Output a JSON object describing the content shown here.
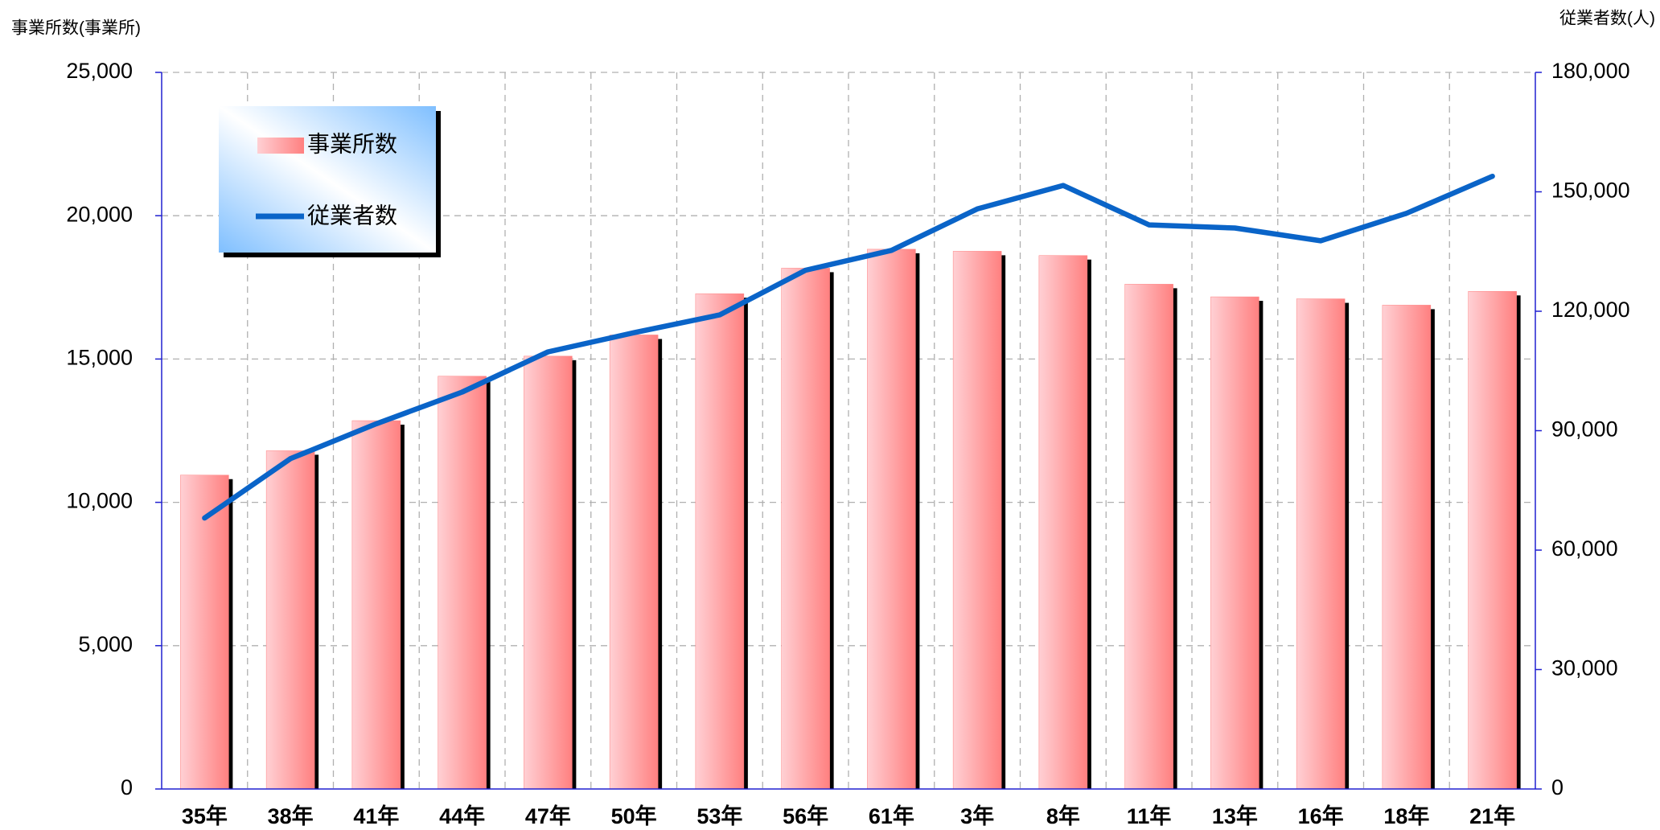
{
  "chart_data": {
    "type": "bar-line",
    "y_label": "事業所数(事業所)",
    "y2_label": "従業者数(人)",
    "categories": [
      "35年",
      "38年",
      "41年",
      "44年",
      "47年",
      "50年",
      "53年",
      "56年",
      "61年",
      "3年",
      "8年",
      "11年",
      "13年",
      "16年",
      "18年",
      "21年"
    ],
    "series": [
      {
        "name": "事業所数",
        "type": "bar",
        "color": "#ff8080",
        "axis": "y",
        "values": [
          10950,
          11800,
          12850,
          14400,
          15100,
          15840,
          17280,
          18170,
          18830,
          18760,
          18610,
          17610,
          17170,
          17100,
          16880,
          17360
        ]
      },
      {
        "name": "従業者数",
        "type": "line",
        "color": "#0a64c8",
        "axis": "y2",
        "values": [
          68070,
          82960,
          91740,
          99700,
          109800,
          114600,
          119100,
          130300,
          135300,
          145700,
          151600,
          141700,
          140900,
          137700,
          144600,
          153900
        ]
      }
    ],
    "ylim": [
      0,
      25000
    ],
    "yticks": [
      0,
      {
        "value": 5000,
        "label": "5,000"
      },
      {
        "value": 10000,
        "label": "10,000"
      },
      {
        "value": 15000,
        "label": "15,000"
      },
      {
        "value": 20000,
        "label": "20,000"
      },
      {
        "value": 25000,
        "label": "25,000"
      }
    ],
    "y2lim": [
      0,
      180000
    ],
    "y2ticks": [
      0,
      {
        "value": 30000,
        "label": "30,000"
      },
      {
        "value": 60000,
        "label": "60,000"
      },
      {
        "value": 90000,
        "label": "90,000"
      },
      {
        "value": 120000,
        "label": "120,000"
      },
      {
        "value": 150000,
        "label": "150,000"
      },
      {
        "value": 180000,
        "label": "180,000"
      }
    ],
    "grid": true
  }
}
